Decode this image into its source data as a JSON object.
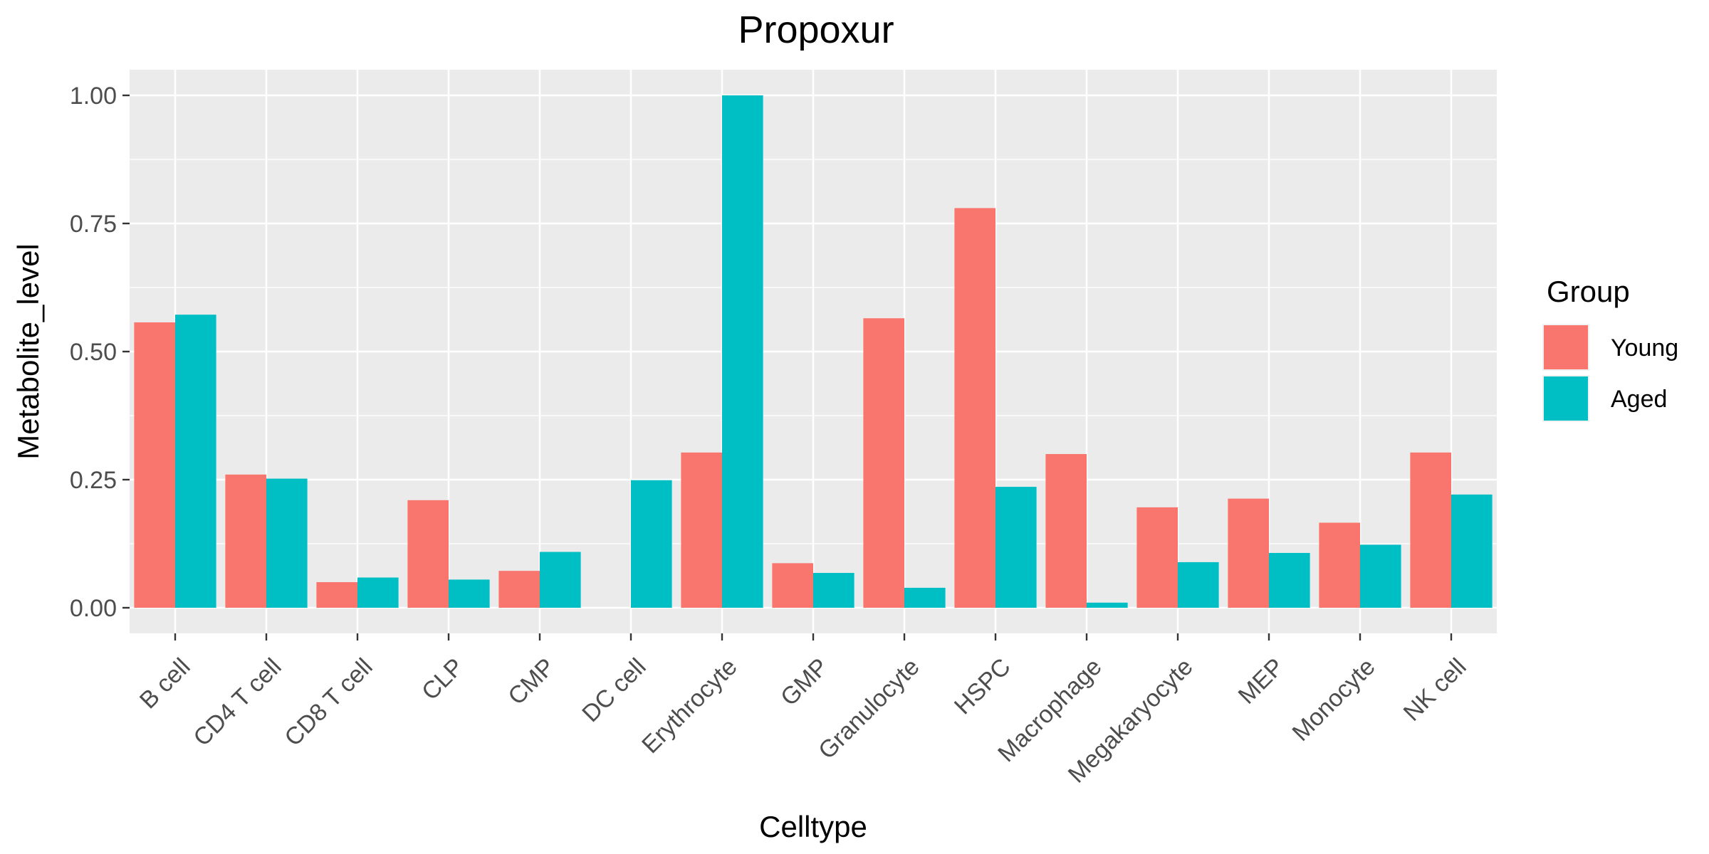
{
  "chart_data": {
    "type": "bar",
    "title": "Propoxur",
    "xlabel": "Celltype",
    "ylabel": "Metabolite_level",
    "ylim": [
      -0.05,
      1.05
    ],
    "yticks": [
      0.0,
      0.25,
      0.5,
      0.75,
      1.0
    ],
    "ytick_labels": [
      "0.00",
      "0.25",
      "0.50",
      "0.75",
      "1.00"
    ],
    "grid": true,
    "legend": {
      "title": "Group",
      "position": "right"
    },
    "categories": [
      "B cell",
      "CD4 T cell",
      "CD8 T cell",
      "CLP",
      "CMP",
      "DC cell",
      "Erythrocyte",
      "GMP",
      "Granulocyte",
      "HSPC",
      "Macrophage",
      "Megakaryocyte",
      "MEP",
      "Monocyte",
      "NK cell"
    ],
    "series": [
      {
        "name": "Young",
        "color": "#F8766D",
        "values": [
          0.557,
          0.26,
          0.05,
          0.21,
          0.072,
          null,
          0.303,
          0.087,
          0.565,
          0.78,
          0.3,
          0.196,
          0.213,
          0.166,
          0.303
        ]
      },
      {
        "name": "Aged",
        "color": "#00BFC4",
        "values": [
          0.572,
          0.252,
          0.059,
          0.055,
          0.109,
          0.249,
          1.0,
          0.068,
          0.039,
          0.236,
          0.01,
          0.089,
          0.107,
          0.123,
          0.221
        ]
      }
    ]
  }
}
